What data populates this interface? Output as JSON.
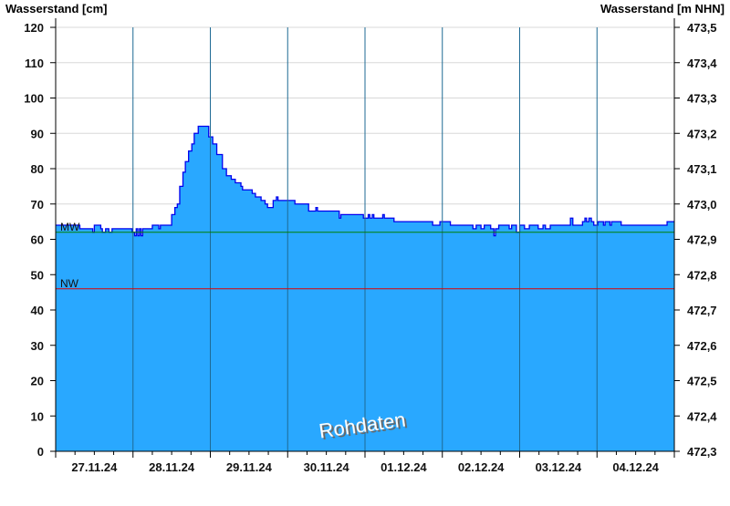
{
  "chart_data": {
    "type": "area",
    "ylabel_left": "Wasserstand [cm]",
    "ylabel_right": "Wasserstand [m NHN]",
    "ylim": [
      0,
      120
    ],
    "yticks_left": [
      0,
      10,
      20,
      30,
      40,
      50,
      60,
      70,
      80,
      90,
      100,
      110,
      120
    ],
    "yticks_right": [
      "472,3",
      "472,4",
      "472,5",
      "472,6",
      "472,7",
      "472,8",
      "472,9",
      "473,0",
      "473,1",
      "473,2",
      "473,3",
      "473,4",
      "473,5"
    ],
    "xlim": [
      "2024-11-27 00:00",
      "2024-12-05 00:00"
    ],
    "xtick_labels": [
      "27.11.24",
      "28.11.24",
      "29.11.24",
      "30.11.24",
      "01.12.24",
      "02.12.24",
      "03.12.24",
      "04.12.24"
    ],
    "grid": true,
    "watermark": "Rohdaten",
    "reference_lines": [
      {
        "label": "MW",
        "value": 62,
        "color": "#008000"
      },
      {
        "label": "NW",
        "value": 46,
        "color": "#e00000"
      }
    ],
    "colors": {
      "fill": "#29a8ff",
      "line": "#0000ee",
      "day_grid": "#1f6a94",
      "h_grid": "#d8d8d8"
    },
    "series": [
      {
        "x": [
          "2024-11-27 00:00",
          "2024-11-27 07:30",
          "2024-11-27 11:00",
          "2024-11-27 11:30",
          "2024-11-27 12:00",
          "2024-11-27 13:30",
          "2024-11-27 14:00",
          "2024-11-27 14:30",
          "2024-11-27 15:30",
          "2024-11-27 16:30",
          "2024-11-27 17:30",
          "2024-11-27 23:00",
          "2024-11-27 23:45",
          "2024-11-28 00:30",
          "2024-11-28 01:00",
          "2024-11-28 01:30",
          "2024-11-28 02:00",
          "2024-11-28 02:30",
          "2024-11-28 03:00",
          "2024-11-28 05:30",
          "2024-11-28 06:00",
          "2024-11-28 07:30",
          "2024-11-28 08:00",
          "2024-11-28 08:30",
          "2024-11-28 11:30",
          "2024-11-28 12:00",
          "2024-11-28 13:00",
          "2024-11-28 13:45",
          "2024-11-28 14:30",
          "2024-11-28 15:30",
          "2024-11-28 16:15",
          "2024-11-28 17:15",
          "2024-11-28 18:15",
          "2024-11-28 19:00",
          "2024-11-28 20:15",
          "2024-11-28 22:45",
          "2024-11-28 23:30",
          "2024-11-29 00:45",
          "2024-11-29 02:00",
          "2024-11-29 03:45",
          "2024-11-29 05:00",
          "2024-11-29 06:30",
          "2024-11-29 07:45",
          "2024-11-29 09:30",
          "2024-11-29 10:00",
          "2024-11-29 12:00",
          "2024-11-29 13:00",
          "2024-11-29 14:00",
          "2024-11-29 15:45",
          "2024-11-29 17:00",
          "2024-11-29 17:45",
          "2024-11-29 18:45",
          "2024-11-29 19:30",
          "2024-11-29 20:30",
          "2024-11-29 21:00",
          "2024-11-30 02:15",
          "2024-11-30 06:00",
          "2024-11-30 06:30",
          "2024-11-30 08:45",
          "2024-11-30 09:15",
          "2024-11-30 15:00",
          "2024-11-30 16:00",
          "2024-11-30 16:30",
          "2024-11-30 23:00",
          "2024-11-30 23:30",
          "2024-12-01 01:00",
          "2024-12-01 01:30",
          "2024-12-01 02:15",
          "2024-12-01 02:45",
          "2024-12-01 04:30",
          "2024-12-01 05:30",
          "2024-12-01 06:00",
          "2024-12-01 08:30",
          "2024-12-01 09:00",
          "2024-12-01 20:30",
          "2024-12-01 21:00",
          "2024-12-01 23:15",
          "2024-12-02 02:00",
          "2024-12-02 02:30",
          "2024-12-02 08:30",
          "2024-12-02 09:30",
          "2024-12-02 10:30",
          "2024-12-02 12:00",
          "2024-12-02 13:00",
          "2024-12-02 15:00",
          "2024-12-02 16:00",
          "2024-12-02 16:30",
          "2024-12-02 17:30",
          "2024-12-02 20:00",
          "2024-12-02 20:45",
          "2024-12-02 21:30",
          "2024-12-02 23:00",
          "2024-12-03 00:00",
          "2024-12-03 01:30",
          "2024-12-03 03:00",
          "2024-12-03 05:45",
          "2024-12-03 07:15",
          "2024-12-03 08:00",
          "2024-12-03 09:30",
          "2024-12-03 15:15",
          "2024-12-03 15:45",
          "2024-12-03 16:30",
          "2024-12-03 18:45",
          "2024-12-03 19:30",
          "2024-12-03 20:15",
          "2024-12-03 20:45",
          "2024-12-03 21:30",
          "2024-12-03 22:15",
          "2024-12-03 23:00",
          "2024-12-04 00:15",
          "2024-12-04 02:00",
          "2024-12-04 02:30",
          "2024-12-04 04:00",
          "2024-12-04 04:30",
          "2024-12-04 07:30",
          "2024-12-04 21:30",
          "2024-12-04 21:45",
          "2024-12-05 00:00"
        ],
        "y": [
          64,
          63,
          63,
          62,
          64,
          64,
          63,
          62,
          63,
          62,
          63,
          63,
          62,
          61,
          63,
          61,
          63,
          61,
          63,
          63,
          64,
          64,
          63,
          64,
          64,
          67,
          69,
          70,
          75,
          79,
          82,
          85,
          87,
          90,
          92,
          92,
          89,
          87,
          84,
          80,
          78,
          77,
          76,
          75,
          74,
          74,
          73,
          72,
          71,
          70,
          69,
          69,
          71,
          72,
          71,
          70,
          70,
          68,
          69,
          68,
          68,
          66,
          67,
          67,
          66,
          67,
          66,
          67,
          66,
          66,
          67,
          66,
          66,
          65,
          65,
          64,
          65,
          65,
          64,
          64,
          63,
          64,
          63,
          64,
          63,
          61,
          63,
          64,
          64,
          63,
          64,
          62,
          64,
          63,
          64,
          63,
          64,
          63,
          64,
          64,
          66,
          64,
          64,
          65,
          66,
          65,
          66,
          65,
          64,
          65,
          64,
          65,
          64,
          65,
          64,
          64,
          65,
          65
        ]
      }
    ]
  }
}
